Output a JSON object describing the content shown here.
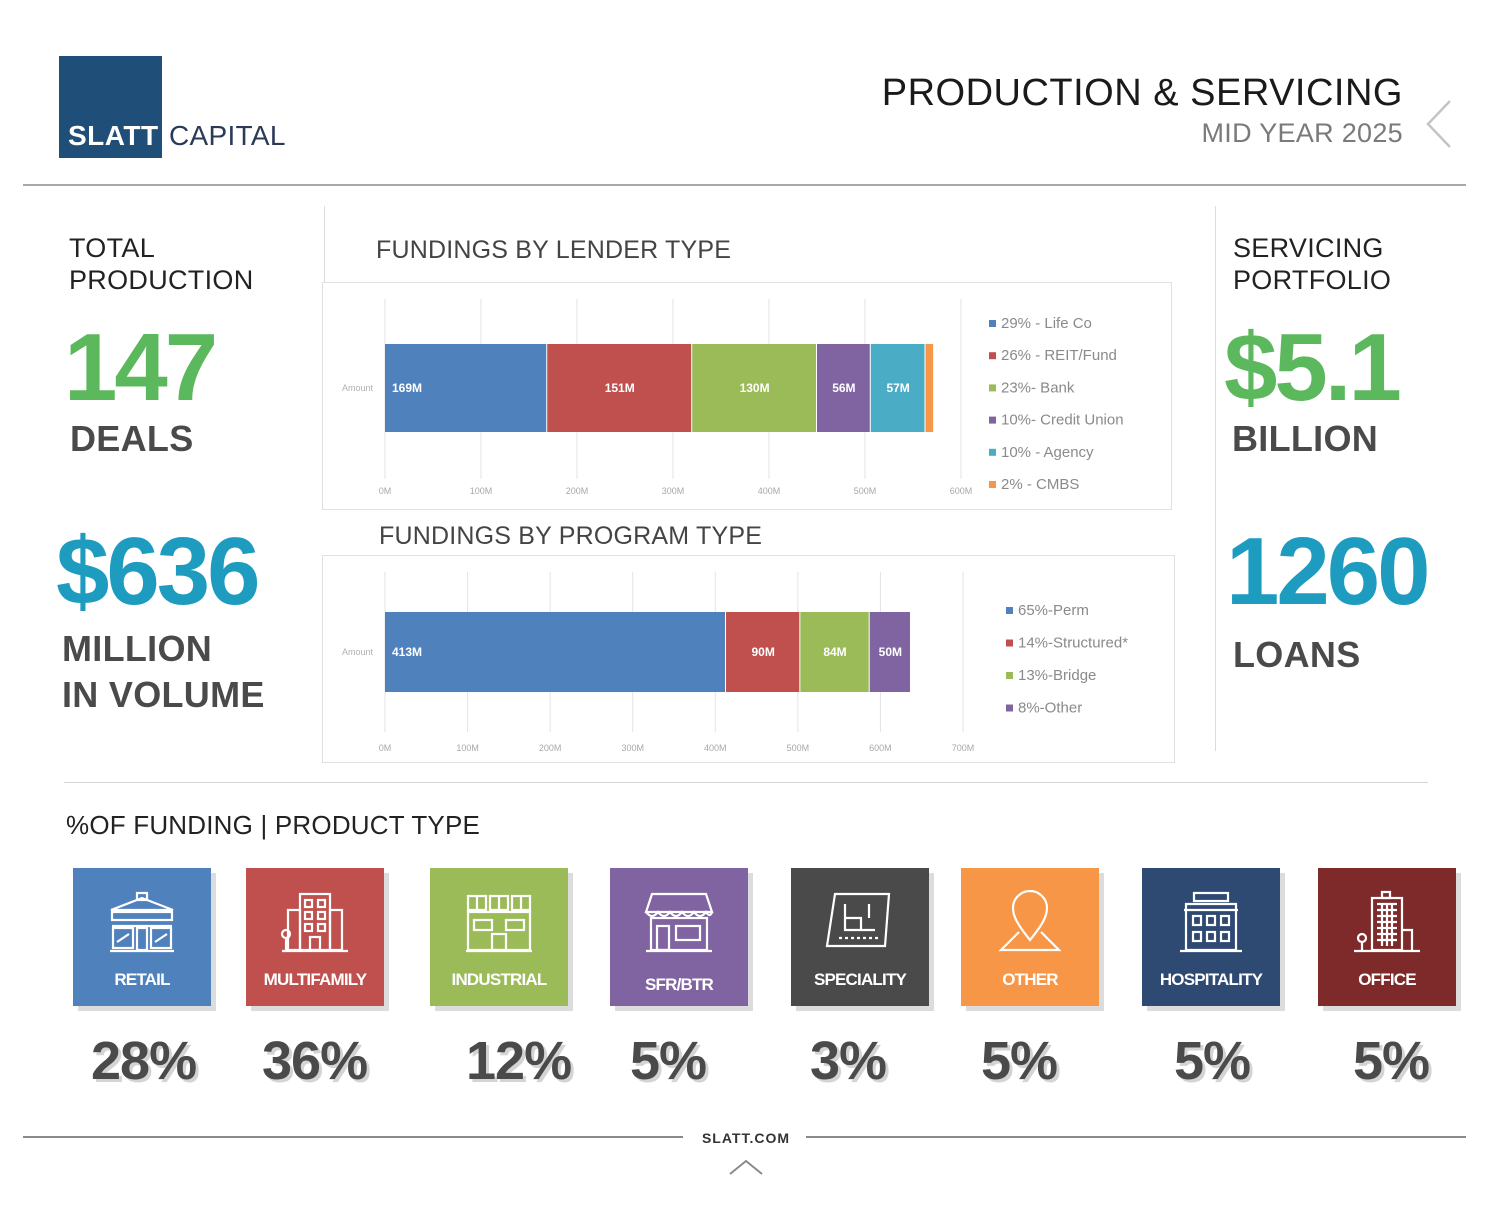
{
  "brand": {
    "logo_bold": "SLATT",
    "logo_light": "CAPITAL",
    "primary_color": "#1f4e79"
  },
  "header": {
    "title": "PRODUCTION & SERVICING",
    "subtitle": "MID YEAR 2025",
    "prev_icon": "chevron-left-icon"
  },
  "total_production": {
    "label_line1": "TOTAL",
    "label_line2": "PRODUCTION",
    "deals_value": "147",
    "deals_unit": "DEALS",
    "volume_value": "$636",
    "volume_unit_line1": "MILLION",
    "volume_unit_line2": "IN VOLUME"
  },
  "servicing": {
    "label_line1": "SERVICING",
    "label_line2": "PORTFOLIO",
    "portfolio_value": "$5.1",
    "portfolio_unit": "BILLION",
    "loans_value": "1260",
    "loans_unit": "LOANS"
  },
  "colors": {
    "accent_green": "#5cb85c",
    "accent_teal": "#1e9cc0"
  },
  "chart_data": [
    {
      "type": "bar",
      "orientation": "horizontal",
      "stacked": true,
      "title": "FUNDINGS BY LENDER TYPE",
      "category_label": "Amount",
      "xlim": [
        0,
        600
      ],
      "ticks": [
        "0M",
        "100M",
        "200M",
        "300M",
        "400M",
        "500M",
        "600M"
      ],
      "series": [
        {
          "name": "Life Co",
          "value": 169,
          "label": "169M",
          "color": "#4f81bd"
        },
        {
          "name": "REIT/Fund",
          "value": 151,
          "label": "151M",
          "color": "#c0504d"
        },
        {
          "name": "Bank",
          "value": 130,
          "label": "130M",
          "color": "#9bbb59"
        },
        {
          "name": "Credit Union",
          "value": 56,
          "label": "56M",
          "color": "#8064a2"
        },
        {
          "name": "Agency",
          "value": 57,
          "label": "57M",
          "color": "#4bacc6"
        },
        {
          "name": "CMBS",
          "value": 9,
          "label": "",
          "color": "#f79646"
        }
      ],
      "legend": [
        "29% - Life Co",
        "26% - REIT/Fund",
        "23%- Bank",
        "10%- Credit Union",
        "10% - Agency",
        "2% - CMBS"
      ],
      "legend_position": "right"
    },
    {
      "type": "bar",
      "orientation": "horizontal",
      "stacked": true,
      "title": "FUNDINGS BY PROGRAM TYPE",
      "category_label": "Amount",
      "xlim": [
        0,
        700
      ],
      "ticks": [
        "0M",
        "100M",
        "200M",
        "300M",
        "400M",
        "500M",
        "600M",
        "700M"
      ],
      "series": [
        {
          "name": "Perm",
          "value": 413,
          "label": "413M",
          "color": "#4f81bd"
        },
        {
          "name": "Structured*",
          "value": 90,
          "label": "90M",
          "color": "#c0504d"
        },
        {
          "name": "Bridge",
          "value": 84,
          "label": "84M",
          "color": "#9bbb59"
        },
        {
          "name": "Other",
          "value": 50,
          "label": "50M",
          "color": "#8064a2"
        }
      ],
      "legend": [
        "65%-Perm",
        "14%-Structured*",
        "13%-Bridge",
        "8%-Other"
      ],
      "legend_position": "right"
    }
  ],
  "product_section": {
    "title": "%OF FUNDING | PRODUCT TYPE",
    "items": [
      {
        "label": "RETAIL",
        "percent": "28%",
        "color": "#4f81bd",
        "icon": "storefront-icon"
      },
      {
        "label": "MULTIFAMILY",
        "percent": "36%",
        "color": "#c0504d",
        "icon": "apartment-building-icon"
      },
      {
        "label": "INDUSTRIAL",
        "percent": "12%",
        "color": "#9bbb59",
        "icon": "warehouse-icon"
      },
      {
        "label": "SFR/BTR",
        "percent": "5%",
        "color": "#8064a2",
        "icon": "shop-awning-icon"
      },
      {
        "label": "SPECIALITY",
        "percent": "3%",
        "color": "#4a4a4a",
        "icon": "floor-plan-icon"
      },
      {
        "label": "OTHER",
        "percent": "5%",
        "color": "#f79646",
        "icon": "map-pin-icon"
      },
      {
        "label": "HOSPITALITY",
        "percent": "5%",
        "color": "#2e4a73",
        "icon": "hotel-icon"
      },
      {
        "label": "OFFICE",
        "percent": "5%",
        "color": "#7f2a2a",
        "icon": "office-tower-icon"
      }
    ]
  },
  "footer": {
    "url": "SLATT.COM",
    "up_icon": "chevron-up-icon"
  }
}
